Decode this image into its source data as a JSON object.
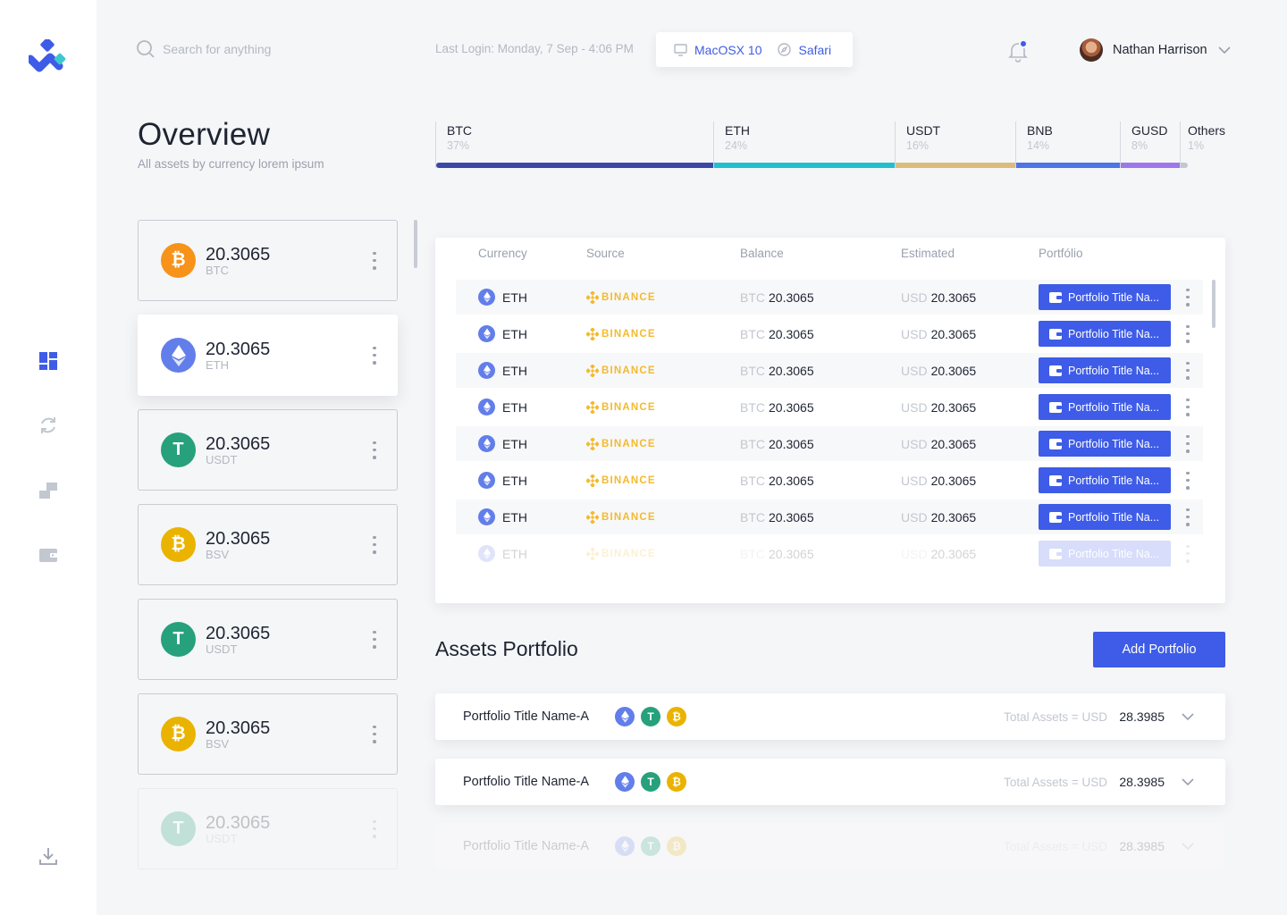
{
  "search": {
    "placeholder": "Search for anything"
  },
  "header": {
    "last_login": "Last Login: Monday, 7 Sep - 4:06 PM",
    "os": "MacOSX 10",
    "browser": "Safari",
    "user_name": "Nathan Harrison"
  },
  "overview": {
    "title": "Overview",
    "subtitle": "All assets by currency lorem ipsum",
    "distribution": [
      {
        "label": "BTC",
        "percent": "37%",
        "color": "#3a49a8"
      },
      {
        "label": "ETH",
        "percent": "24%",
        "color": "#22bfcf"
      },
      {
        "label": "USDT",
        "percent": "16%",
        "color": "#dcbc7c"
      },
      {
        "label": "BNB",
        "percent": "14%",
        "color": "#4e74e6"
      },
      {
        "label": "GUSD",
        "percent": "8%",
        "color": "#9e78ea"
      },
      {
        "label": "Others",
        "percent": "1%",
        "color": "#c2c7d0"
      }
    ]
  },
  "cards": [
    {
      "amount": "20.3065",
      "symbol": "BTC",
      "coin": "btc",
      "color": "#f7931a",
      "glyph": "₿"
    },
    {
      "amount": "20.3065",
      "symbol": "ETH",
      "coin": "eth",
      "color": "#627eea",
      "glyph": ""
    },
    {
      "amount": "20.3065",
      "symbol": "USDT",
      "coin": "usdt",
      "color": "#26a17b",
      "glyph": "T"
    },
    {
      "amount": "20.3065",
      "symbol": "BSV",
      "coin": "bsv",
      "color": "#eab300",
      "glyph": "₿"
    },
    {
      "amount": "20.3065",
      "symbol": "USDT",
      "coin": "usdt",
      "color": "#26a17b",
      "glyph": "T"
    },
    {
      "amount": "20.3065",
      "symbol": "BSV",
      "coin": "bsv",
      "color": "#eab300",
      "glyph": "₿"
    },
    {
      "amount": "20.3065",
      "symbol": "USDT",
      "coin": "usdt",
      "color": "#26a17b",
      "glyph": "T"
    }
  ],
  "table": {
    "headers": [
      "Currency",
      "Source",
      "Balance",
      "Estimated",
      "Portfólio"
    ],
    "rows": [
      {
        "currency": "ETH",
        "source": "BINANCE",
        "bal_unit": "BTC",
        "balance": "20.3065",
        "est_unit": "USD",
        "estimated": "20.3065",
        "portfolio": "Portfolio Title Na..."
      },
      {
        "currency": "ETH",
        "source": "BINANCE",
        "bal_unit": "BTC",
        "balance": "20.3065",
        "est_unit": "USD",
        "estimated": "20.3065",
        "portfolio": "Portfolio Title Na..."
      },
      {
        "currency": "ETH",
        "source": "BINANCE",
        "bal_unit": "BTC",
        "balance": "20.3065",
        "est_unit": "USD",
        "estimated": "20.3065",
        "portfolio": "Portfolio Title Na..."
      },
      {
        "currency": "ETH",
        "source": "BINANCE",
        "bal_unit": "BTC",
        "balance": "20.3065",
        "est_unit": "USD",
        "estimated": "20.3065",
        "portfolio": "Portfolio Title Na..."
      },
      {
        "currency": "ETH",
        "source": "BINANCE",
        "bal_unit": "BTC",
        "balance": "20.3065",
        "est_unit": "USD",
        "estimated": "20.3065",
        "portfolio": "Portfolio Title Na..."
      },
      {
        "currency": "ETH",
        "source": "BINANCE",
        "bal_unit": "BTC",
        "balance": "20.3065",
        "est_unit": "USD",
        "estimated": "20.3065",
        "portfolio": "Portfolio Title Na..."
      },
      {
        "currency": "ETH",
        "source": "BINANCE",
        "bal_unit": "BTC",
        "balance": "20.3065",
        "est_unit": "USD",
        "estimated": "20.3065",
        "portfolio": "Portfolio Title Na..."
      },
      {
        "currency": "ETH",
        "source": "BINANCE",
        "bal_unit": "BTC",
        "balance": "20.3065",
        "est_unit": "USD",
        "estimated": "20.3065",
        "portfolio": "Portfolio Title Na..."
      }
    ]
  },
  "assets_portfolio": {
    "title": "Assets Portfolio",
    "add_button": "Add Portfolio",
    "items": [
      {
        "name": "Portfolio Title Name-A",
        "total_label": "Total Assets = USD",
        "total_value": "28.3985"
      },
      {
        "name": "Portfolio Title Name-A",
        "total_label": "Total Assets = USD",
        "total_value": "28.3985"
      },
      {
        "name": "Portfolio Title Name-A",
        "total_label": "Total Assets = USD",
        "total_value": "28.3985"
      }
    ]
  },
  "colors": {
    "accent": "#3e5ce7",
    "eth": "#627eea",
    "usdt": "#26a17b",
    "btc": "#f7931a",
    "bsv": "#eab300",
    "binance": "#f3ba2f"
  },
  "icons": {
    "sidebar": [
      "dashboard-icon",
      "refresh-icon",
      "exchange-icon",
      "wallet-icon",
      "download-icon"
    ]
  }
}
